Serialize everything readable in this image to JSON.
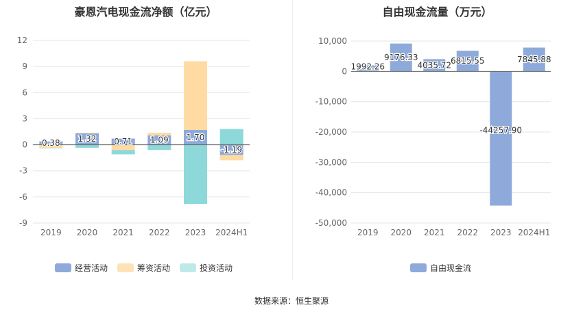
{
  "chart_data": [
    {
      "type": "bar",
      "stacked": true,
      "title": "豪恩汽电现金流净额（亿元）",
      "categories": [
        "2019",
        "2020",
        "2021",
        "2022",
        "2023",
        "2024H1"
      ],
      "ylim": [
        -9,
        12
      ],
      "yticks": [
        "12",
        "9",
        "6",
        "3",
        "0",
        "-3",
        "-6",
        "-9"
      ],
      "series": [
        {
          "name": "经营活动",
          "color": "#8eaadb",
          "values": [
            0.38,
            1.32,
            0.71,
            1.09,
            1.7,
            -1.19
          ],
          "labels": [
            "0.38",
            "1.32",
            "0.71",
            "1.09",
            "1.70",
            "-1.19"
          ]
        },
        {
          "name": "筹资活动",
          "color": "#ffdba3",
          "values": [
            -0.35,
            0.05,
            -0.6,
            0.3,
            7.9,
            -0.6
          ]
        },
        {
          "name": "投资活动",
          "color": "#8dd8d8",
          "values": [
            -0.05,
            -0.35,
            -0.5,
            -0.6,
            -6.8,
            1.8
          ]
        }
      ],
      "legend_position": "bottom"
    },
    {
      "type": "bar",
      "title": "自由现金流量（万元）",
      "categories": [
        "2019",
        "2020",
        "2021",
        "2022",
        "2023",
        "2024H1"
      ],
      "ylim": [
        -50000,
        10000
      ],
      "yticks": [
        "10,000",
        "0",
        "-10,000",
        "-20,000",
        "-30,000",
        "-40,000",
        "-50,000"
      ],
      "series": [
        {
          "name": "自由现金流",
          "color": "#8eaadb",
          "values": [
            1992.26,
            9176.33,
            4035.72,
            6815.55,
            -44257.9,
            7845.88
          ],
          "labels": [
            "1992.26",
            "9176.33",
            "4035.72",
            "6815.55",
            "-44257.90",
            "7845.88"
          ]
        }
      ],
      "legend_position": "bottom"
    }
  ],
  "source_text": "数据来源：恒生聚源"
}
